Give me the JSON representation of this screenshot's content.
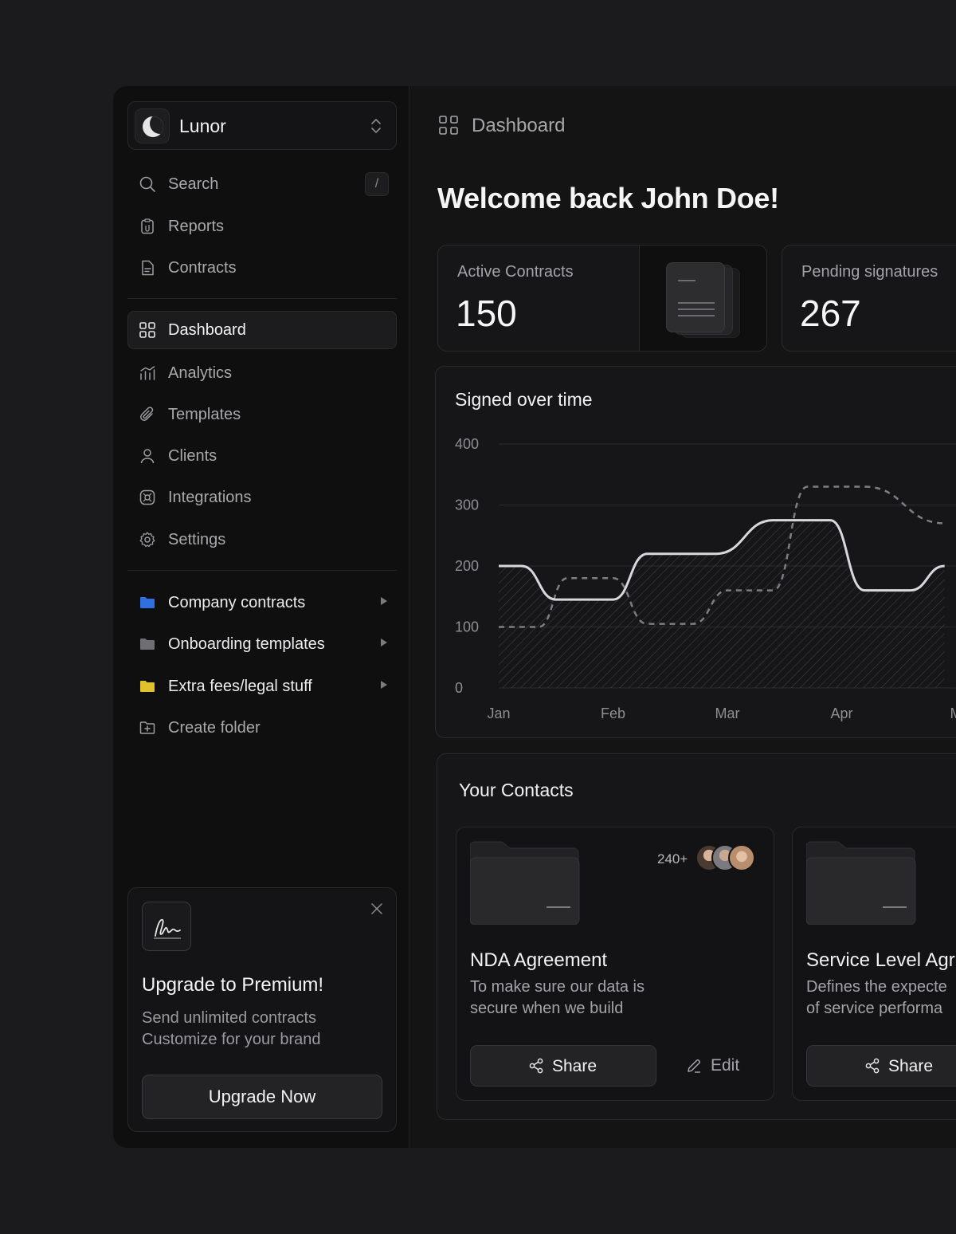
{
  "brand": {
    "name": "Lunor"
  },
  "sidebar": {
    "search": {
      "label": "Search",
      "shortcut": "/"
    },
    "top_items": [
      {
        "label": "Reports",
        "icon": "clipboard-icon"
      },
      {
        "label": "Contracts",
        "icon": "document-icon"
      }
    ],
    "nav_items": [
      {
        "label": "Dashboard",
        "icon": "grid-icon",
        "active": true
      },
      {
        "label": "Analytics",
        "icon": "analytics-icon"
      },
      {
        "label": "Templates",
        "icon": "paperclip-icon"
      },
      {
        "label": "Clients",
        "icon": "user-icon"
      },
      {
        "label": "Integrations",
        "icon": "integrations-icon"
      },
      {
        "label": "Settings",
        "icon": "gear-icon"
      }
    ],
    "folders": [
      {
        "label": "Company contracts",
        "color": "#2f6fe0"
      },
      {
        "label": "Onboarding templates",
        "color": "#6e6e73"
      },
      {
        "label": "Extra fees/legal stuff",
        "color": "#e2c22c"
      }
    ],
    "create_folder": "Create folder"
  },
  "promo": {
    "title": "Upgrade to Premium!",
    "line1": "Send unlimited contracts",
    "line2": "Customize for your brand",
    "button": "Upgrade Now"
  },
  "header": {
    "breadcrumb": "Dashboard"
  },
  "welcome": "Welcome back John Doe!",
  "stats": [
    {
      "label": "Active Contracts",
      "value": "150"
    },
    {
      "label": "Pending signatures",
      "value": "267"
    }
  ],
  "chart": {
    "title": "Signed over time"
  },
  "chart_data": {
    "type": "line",
    "title": "Signed over time",
    "categories": [
      "Jan",
      "Feb",
      "Mar",
      "Apr",
      "May"
    ],
    "x_labels_visible": [
      "Jan",
      "Feb",
      "Mar",
      "Apr",
      "M"
    ],
    "ylim": [
      0,
      400
    ],
    "yticks": [
      0,
      100,
      200,
      300,
      400
    ],
    "grid": true,
    "series": [
      {
        "style": "solid",
        "x": [
          0,
          0.2,
          0.5,
          1.0,
          1.3,
          1.9,
          2.4,
          2.9,
          3.2,
          3.6,
          3.9
        ],
        "values": [
          200,
          200,
          145,
          145,
          220,
          220,
          275,
          275,
          160,
          160,
          200
        ]
      },
      {
        "style": "dashed",
        "x": [
          0,
          0.35,
          0.6,
          1.0,
          1.3,
          1.7,
          2.0,
          2.4,
          2.7,
          3.2,
          3.9
        ],
        "values": [
          100,
          100,
          180,
          180,
          105,
          105,
          160,
          160,
          330,
          330,
          270
        ]
      }
    ]
  },
  "contacts": {
    "title": "Your Contacts",
    "cards": [
      {
        "count": "240+",
        "title": "NDA Agreement",
        "desc1": "To make sure our data is",
        "desc2": "secure when we build",
        "share": "Share",
        "edit": "Edit"
      },
      {
        "title": "Service Level Agr",
        "desc1": "Defines the expecte",
        "desc2": "of service performa",
        "share": "Share"
      }
    ]
  }
}
